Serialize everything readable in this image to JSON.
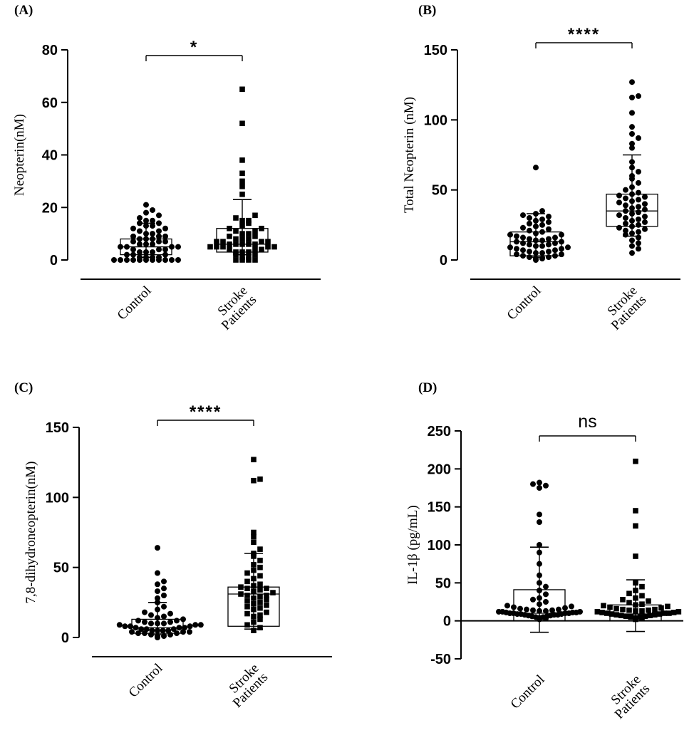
{
  "chart_data": [
    {
      "type": "scatter",
      "panel": "(A)",
      "ylabel": "Neopterin(nM)",
      "xlabel": "",
      "ylim": [
        0,
        80
      ],
      "yticks": [
        0,
        20,
        40,
        60,
        80
      ],
      "significance": "*",
      "legend": "none",
      "grid": false,
      "categories": [
        "Control",
        "Stroke Patients"
      ],
      "series": [
        {
          "name": "Control",
          "marker": "circle",
          "box": {
            "q1": 2,
            "median": 5,
            "q3": 8
          },
          "whiskers": [
            1,
            14
          ],
          "values": [
            0,
            0,
            0,
            0,
            0,
            0,
            0,
            0,
            0,
            0,
            0,
            1,
            1,
            1,
            1,
            2,
            2,
            2,
            3,
            3,
            3,
            4,
            4,
            4,
            5,
            5,
            5,
            5,
            6,
            6,
            6,
            7,
            7,
            7,
            8,
            8,
            8,
            9,
            9,
            9,
            10,
            10,
            11,
            11,
            12,
            12,
            13,
            13,
            14,
            14,
            15,
            15,
            16,
            17,
            18,
            19,
            21
          ]
        },
        {
          "name": "Stroke Patients",
          "marker": "square",
          "box": {
            "q1": 3,
            "median": 6,
            "q3": 12
          },
          "whiskers": [
            2,
            23
          ],
          "values": [
            0,
            0,
            0,
            0,
            1,
            1,
            2,
            2,
            3,
            3,
            3,
            4,
            4,
            4,
            5,
            5,
            5,
            5,
            5,
            6,
            6,
            6,
            6,
            6,
            7,
            7,
            7,
            7,
            8,
            8,
            8,
            9,
            9,
            10,
            10,
            11,
            11,
            12,
            12,
            13,
            14,
            15,
            15,
            16,
            17,
            25,
            28,
            30,
            33,
            38,
            52,
            65
          ]
        }
      ]
    },
    {
      "type": "scatter",
      "panel": "(B)",
      "ylabel": "Total Neopterin (nM)",
      "xlabel": "",
      "ylim": [
        0,
        150
      ],
      "yticks": [
        0,
        50,
        100,
        150
      ],
      "significance": "****",
      "legend": "none",
      "grid": false,
      "categories": [
        "Control",
        "Stroke Patients"
      ],
      "series": [
        {
          "name": "Control",
          "marker": "circle",
          "box": {
            "q1": 3,
            "median": 13,
            "q3": 20
          },
          "whiskers": [
            2,
            33
          ],
          "values": [
            0,
            1,
            1,
            2,
            2,
            3,
            3,
            4,
            4,
            5,
            5,
            6,
            6,
            7,
            7,
            8,
            8,
            9,
            9,
            10,
            10,
            11,
            11,
            12,
            12,
            13,
            13,
            14,
            14,
            15,
            15,
            16,
            16,
            17,
            18,
            18,
            19,
            20,
            21,
            22,
            23,
            24,
            25,
            26,
            27,
            28,
            29,
            30,
            31,
            32,
            33,
            35,
            66
          ]
        },
        {
          "name": "Stroke Patients",
          "marker": "circle",
          "box": {
            "q1": 24,
            "median": 35,
            "q3": 47
          },
          "whiskers": [
            17,
            75
          ],
          "values": [
            5,
            8,
            10,
            12,
            14,
            16,
            18,
            19,
            20,
            21,
            22,
            23,
            24,
            25,
            26,
            27,
            28,
            29,
            30,
            31,
            32,
            33,
            34,
            35,
            36,
            37,
            38,
            39,
            40,
            41,
            42,
            43,
            44,
            45,
            46,
            47,
            48,
            50,
            52,
            55,
            58,
            60,
            63,
            66,
            70,
            80,
            83,
            87,
            90,
            95,
            105,
            116,
            117,
            127
          ]
        }
      ]
    },
    {
      "type": "scatter",
      "panel": "(C)",
      "ylabel": "7,8-dihydroneopterin(nM)",
      "xlabel": "",
      "ylim": [
        0,
        150
      ],
      "yticks": [
        0,
        50,
        100,
        150
      ],
      "significance": "****",
      "legend": "none",
      "grid": false,
      "categories": [
        "Control",
        "Stroke Patients"
      ],
      "series": [
        {
          "name": "Control",
          "marker": "circle",
          "box": {
            "q1": 3,
            "median": 7,
            "q3": 13
          },
          "whiskers": [
            2,
            25
          ],
          "values": [
            0,
            1,
            1,
            2,
            2,
            3,
            3,
            3,
            4,
            4,
            4,
            5,
            5,
            5,
            5,
            6,
            6,
            6,
            7,
            7,
            7,
            8,
            8,
            8,
            9,
            9,
            9,
            10,
            10,
            10,
            11,
            11,
            12,
            12,
            13,
            14,
            15,
            16,
            17,
            18,
            20,
            22,
            25,
            28,
            30,
            33,
            35,
            38,
            40,
            46,
            64
          ]
        },
        {
          "name": "Stroke Patients",
          "marker": "square",
          "box": {
            "q1": 8,
            "median": 31,
            "q3": 36
          },
          "whiskers": [
            6,
            60
          ],
          "values": [
            5,
            7,
            9,
            11,
            13,
            15,
            16,
            17,
            18,
            20,
            21,
            22,
            23,
            24,
            25,
            26,
            27,
            28,
            29,
            30,
            30,
            31,
            32,
            33,
            34,
            35,
            35,
            36,
            37,
            38,
            40,
            42,
            44,
            46,
            48,
            50,
            52,
            55,
            58,
            60,
            63,
            68,
            72,
            75,
            112,
            113,
            127
          ]
        }
      ]
    },
    {
      "type": "scatter",
      "panel": "(D)",
      "ylabel": "IL-1β (pg/mL)",
      "xlabel": "",
      "ylim": [
        -50,
        250
      ],
      "yticks": [
        -50,
        0,
        50,
        100,
        150,
        200,
        250
      ],
      "significance": "ns",
      "legend": "none",
      "grid": false,
      "categories": [
        "Control",
        "Stroke Patients"
      ],
      "series": [
        {
          "name": "Control",
          "marker": "circle",
          "box": {
            "q1": 0,
            "median": 10,
            "q3": 41
          },
          "whiskers": [
            -15,
            97
          ],
          "values": [
            2,
            3,
            4,
            5,
            5,
            6,
            6,
            7,
            7,
            8,
            8,
            8,
            9,
            9,
            9,
            10,
            10,
            10,
            10,
            11,
            11,
            11,
            12,
            12,
            12,
            13,
            13,
            14,
            14,
            15,
            15,
            16,
            17,
            18,
            19,
            20,
            22,
            25,
            28,
            30,
            35,
            40,
            45,
            50,
            60,
            75,
            90,
            100,
            130,
            140,
            175,
            178,
            180,
            182
          ]
        },
        {
          "name": "Stroke Patients",
          "marker": "square",
          "box": {
            "q1": 0,
            "median": 9,
            "q3": 21
          },
          "whiskers": [
            -14,
            54
          ],
          "values": [
            2,
            3,
            4,
            5,
            5,
            6,
            6,
            7,
            7,
            8,
            8,
            9,
            9,
            10,
            10,
            10,
            11,
            11,
            12,
            12,
            13,
            13,
            14,
            14,
            15,
            15,
            16,
            17,
            18,
            19,
            20,
            21,
            22,
            24,
            26,
            28,
            30,
            33,
            36,
            40,
            45,
            50,
            85,
            125,
            145,
            210
          ]
        }
      ]
    }
  ]
}
